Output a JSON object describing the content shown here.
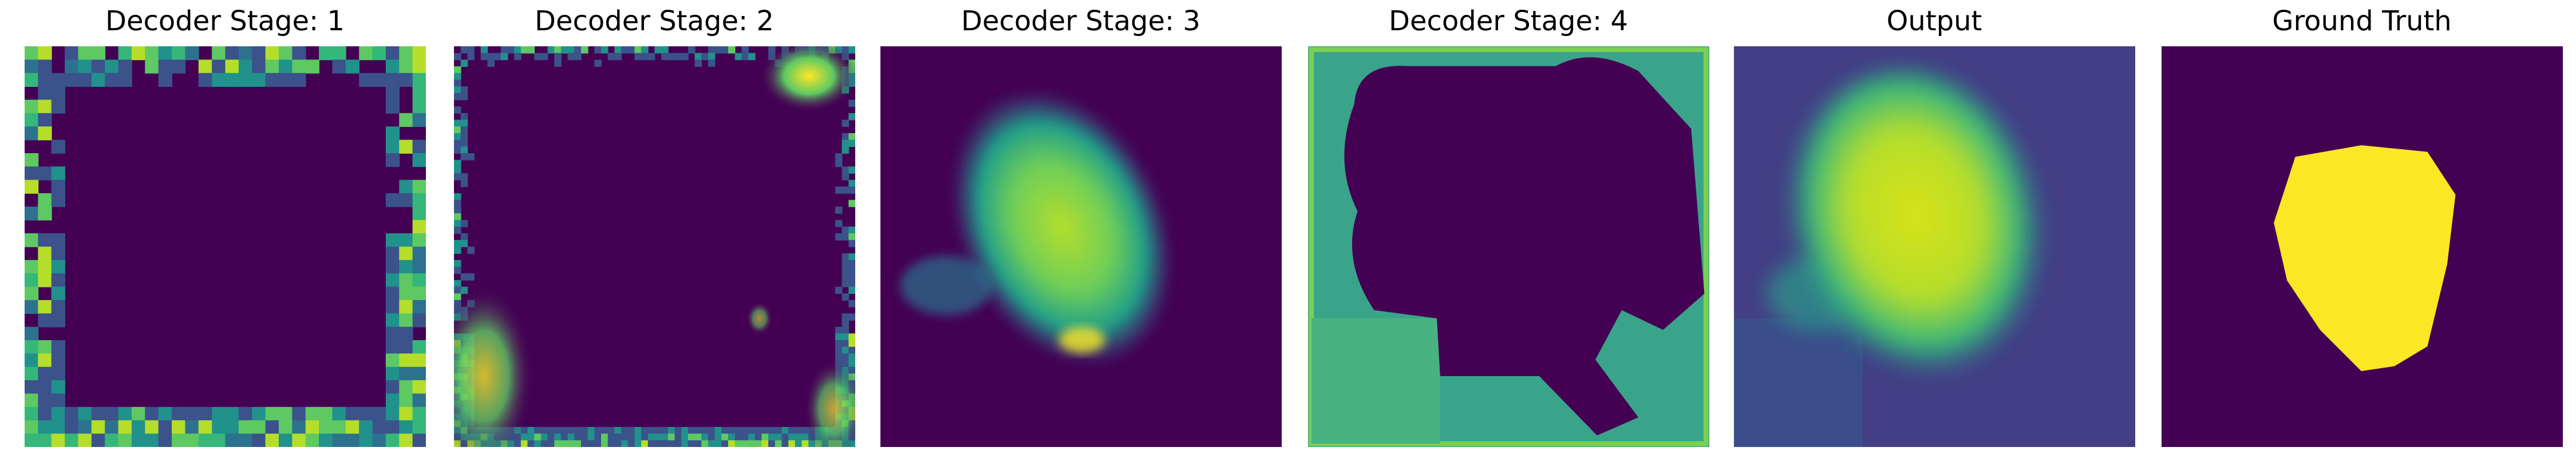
{
  "panels": [
    {
      "title": "Decoder Stage: 1"
    },
    {
      "title": "Decoder Stage: 2"
    },
    {
      "title": "Decoder Stage: 3"
    },
    {
      "title": "Decoder Stage: 4"
    },
    {
      "title": "Output"
    },
    {
      "title": "Ground Truth"
    }
  ]
}
